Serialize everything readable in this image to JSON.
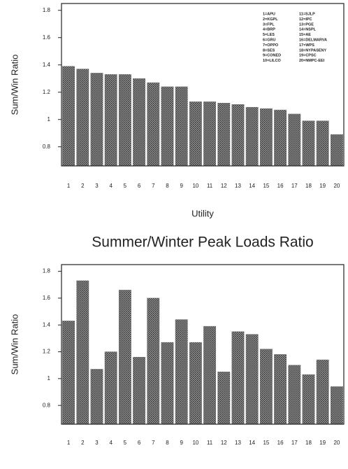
{
  "chart_data": [
    {
      "type": "bar",
      "ylabel": "Sum/Win Ratio",
      "xlabel": "Utility",
      "categories": [
        "1",
        "2",
        "3",
        "4",
        "5",
        "6",
        "7",
        "8",
        "9",
        "10",
        "11",
        "12",
        "13",
        "14",
        "15",
        "16",
        "17",
        "18",
        "19",
        "20"
      ],
      "values": [
        1.39,
        1.37,
        1.34,
        1.33,
        1.33,
        1.3,
        1.27,
        1.24,
        1.24,
        1.13,
        1.13,
        1.12,
        1.11,
        1.09,
        1.08,
        1.07,
        1.04,
        0.99,
        0.99,
        0.89
      ],
      "color": "#6e6e6e",
      "ylim": [
        0.66,
        1.85
      ],
      "yticks": [
        0.8,
        1.0,
        1.2,
        1.4,
        1.6,
        1.8
      ],
      "legend_entries": [
        "1=APU",
        "2=KGPL",
        "3=FPL",
        "4=BRP",
        "5=LES",
        "6=GRU",
        "7=OPPO",
        "8=SES",
        "9=CONED",
        "10=LILCO",
        "11=SJLP",
        "12=IPC",
        "13=PGE",
        "14=NSPL",
        "15=AE",
        "16=DELMARVA",
        "17=WPS",
        "18=NYPASENY",
        "19=CPSC",
        "20=NMPC-EEI"
      ]
    },
    {
      "type": "bar",
      "title": "Summer/Winter Peak Loads Ratio",
      "ylabel": "Sum/Win Ratio",
      "categories": [
        "1",
        "2",
        "3",
        "4",
        "5",
        "6",
        "7",
        "8",
        "9",
        "10",
        "11",
        "12",
        "13",
        "14",
        "15",
        "16",
        "17",
        "18",
        "19",
        "20"
      ],
      "values": [
        1.43,
        1.73,
        1.07,
        1.2,
        1.66,
        1.16,
        1.6,
        1.27,
        1.44,
        1.27,
        1.39,
        1.05,
        1.35,
        1.33,
        1.22,
        1.18,
        1.1,
        1.03,
        1.14,
        0.94
      ],
      "color": "#6e6e6e",
      "ylim": [
        0.66,
        1.85
      ],
      "yticks": [
        0.8,
        1.0,
        1.2,
        1.4,
        1.6,
        1.8
      ]
    }
  ]
}
